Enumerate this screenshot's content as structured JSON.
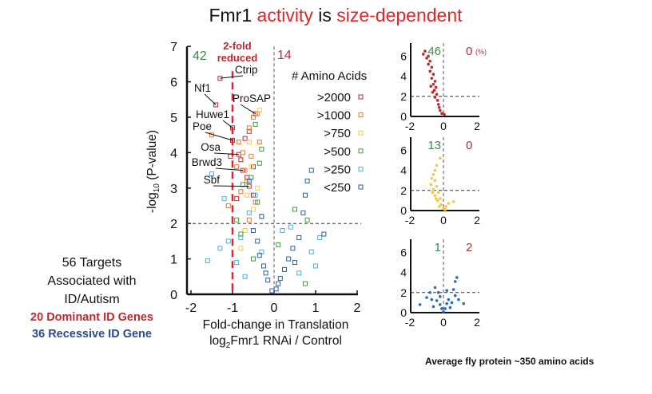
{
  "slide": {
    "title_parts": [
      "Fmr1 ",
      "activity",
      " is ",
      "size-dependent"
    ],
    "left_text": [
      "56 Targets",
      "Associated with",
      "ID/Autism"
    ],
    "dominant_label": "20 Dominant ID Genes",
    "recessive_label": "36 Recessive ID Gene",
    "footnote": "Average fly protein ~350 amino acids",
    "colors": {
      "title_accent": "#e0262a",
      "dominant": "#c0272d",
      "recessive": "#2c4a8c"
    }
  },
  "chart_data": [
    {
      "type": "scatter",
      "xlabel": "Fold-change in Translation",
      "xlabel2": "log2 Fmr1 RNAi / Control",
      "ylabel": "-log10 (P-value)",
      "xlim": [
        -2,
        2
      ],
      "ylim": [
        0,
        7
      ],
      "xticks": [
        "-2",
        "-1",
        "0",
        "1",
        "2"
      ],
      "yticks": [
        "0",
        "1",
        "2",
        "3",
        "4",
        "5",
        "6",
        "7"
      ],
      "threshold_y": 2,
      "threshold_x": -1,
      "threshold_x_label": [
        "2-fold",
        "reduced"
      ],
      "count_left": "42",
      "count_right": "14",
      "legend_title": "# Amino Acids",
      "legend_position": "right",
      "series": [
        {
          "name": ">2000",
          "color": "#c0272d",
          "points": [
            [
              -1.3,
              6.1
            ],
            [
              -1.4,
              5.35
            ],
            [
              -0.45,
              5.1
            ],
            [
              -1.0,
              4.7
            ],
            [
              -1.0,
              4.35
            ],
            [
              -0.85,
              3.95
            ],
            [
              -0.75,
              3.5
            ],
            [
              -0.6,
              3.05
            ],
            [
              -0.7,
              4.4
            ],
            [
              -0.6,
              4.6
            ],
            [
              -0.8,
              3.8
            ],
            [
              -1.05,
              3.9
            ],
            [
              -0.65,
              3.3
            ],
            [
              -0.9,
              2.7
            ],
            [
              -0.5,
              3.6
            ],
            [
              -0.5,
              2.8
            ]
          ]
        },
        {
          "name": ">1000",
          "color": "#e8782a",
          "points": [
            [
              -1.5,
              4.5
            ],
            [
              -0.4,
              5.1
            ],
            [
              -0.5,
              5.0
            ],
            [
              -0.6,
              4.7
            ],
            [
              -0.35,
              4.3
            ],
            [
              -0.85,
              4.3
            ],
            [
              -0.9,
              3.6
            ],
            [
              -0.7,
              3.5
            ],
            [
              -0.55,
              3.9
            ],
            [
              -0.75,
              4.0
            ],
            [
              -0.65,
              3.2
            ],
            [
              -0.8,
              2.9
            ],
            [
              -0.45,
              2.6
            ],
            [
              -0.6,
              2.1
            ],
            [
              -1.1,
              2.5
            ]
          ]
        },
        {
          "name": ">750",
          "color": "#f2c84b",
          "points": [
            [
              -0.35,
              5.2
            ],
            [
              -0.55,
              3.6
            ],
            [
              -0.65,
              2.8
            ],
            [
              -0.5,
              2.4
            ],
            [
              -0.7,
              1.8
            ],
            [
              -0.4,
              3.0
            ],
            [
              -0.6,
              4.3
            ],
            [
              -0.3,
              2.2
            ],
            [
              -0.8,
              1.3
            ]
          ]
        },
        {
          "name": ">500",
          "color": "#3aa03a",
          "points": [
            [
              -0.9,
              2.1
            ],
            [
              -0.8,
              1.7
            ],
            [
              -0.55,
              3.3
            ],
            [
              -0.45,
              4.8
            ],
            [
              -0.35,
              3.7
            ],
            [
              -0.4,
              2.6
            ],
            [
              0.5,
              2.4
            ],
            [
              0.8,
              2.1
            ],
            [
              0.75,
              0.3
            ],
            [
              0.1,
              1.4
            ],
            [
              -0.5,
              1.0
            ],
            [
              -0.3,
              4.1
            ],
            [
              -0.75,
              3.1
            ]
          ]
        },
        {
          "name": ">250",
          "color": "#4aaee8",
          "points": [
            [
              -1.6,
              0.95
            ],
            [
              -1.3,
              1.3
            ],
            [
              -1.1,
              1.5
            ],
            [
              -0.9,
              0.9
            ],
            [
              -0.8,
              1.6
            ],
            [
              -0.6,
              2.3
            ],
            [
              -1.5,
              3.4
            ],
            [
              -0.7,
              0.5
            ],
            [
              0.4,
              1.9
            ],
            [
              0.9,
              1.2
            ],
            [
              1.0,
              0.8
            ],
            [
              1.1,
              1.6
            ],
            [
              -0.45,
              2.8
            ],
            [
              -0.3,
              1.2
            ],
            [
              0.2,
              1.8
            ],
            [
              -1.2,
              2.7
            ],
            [
              0.6,
              0.6
            ]
          ]
        },
        {
          "name": "<250",
          "color": "#2a5fae",
          "points": [
            [
              -0.05,
              0.1
            ],
            [
              0.05,
              0.15
            ],
            [
              -0.15,
              0.4
            ],
            [
              0.15,
              0.45
            ],
            [
              -0.25,
              0.8
            ],
            [
              0.25,
              0.7
            ],
            [
              -0.35,
              1.1
            ],
            [
              0.35,
              1.0
            ],
            [
              0.45,
              1.3
            ],
            [
              -0.4,
              1.5
            ],
            [
              0.6,
              1.6
            ],
            [
              0.8,
              3.2
            ],
            [
              0.9,
              3.5
            ],
            [
              0.75,
              2.8
            ],
            [
              0.7,
              2.3
            ],
            [
              -0.3,
              2.2
            ],
            [
              -0.5,
              1.8
            ],
            [
              0.5,
              0.9
            ],
            [
              1.2,
              1.7
            ],
            [
              -0.6,
              3.2
            ],
            [
              -0.2,
              0.6
            ],
            [
              0.1,
              0.3
            ]
          ]
        }
      ],
      "annotations": [
        {
          "label": "Ctrip",
          "point": [
            -1.3,
            6.1
          ]
        },
        {
          "label": "Nf1",
          "point": [
            -1.4,
            5.35
          ]
        },
        {
          "label": "ProSAP",
          "point": [
            -0.45,
            5.1
          ]
        },
        {
          "label": "Huwe1",
          "point": [
            -1.0,
            4.7
          ]
        },
        {
          "label": "Poe",
          "point": [
            -1.0,
            4.35
          ]
        },
        {
          "label": "Osa",
          "point": [
            -0.85,
            3.95
          ]
        },
        {
          "label": "Brwd3",
          "point": [
            -0.75,
            3.5
          ]
        },
        {
          "label": "Sbf",
          "point": [
            -0.6,
            3.05
          ]
        }
      ]
    },
    {
      "type": "scatter",
      "xlim": [
        -2,
        2
      ],
      "ylim": [
        0,
        7
      ],
      "xticks": [
        "-2",
        "0",
        "2"
      ],
      "yticks": [
        "0",
        "2",
        "4",
        "6"
      ],
      "count_left": "46",
      "count_right": "0",
      "unit_note": "(%)",
      "color": "#c0272d",
      "points": [
        [
          -1.1,
          6.5
        ],
        [
          -1.2,
          6.2
        ],
        [
          -0.9,
          6.0
        ],
        [
          -1.0,
          5.8
        ],
        [
          -0.8,
          5.5
        ],
        [
          -0.9,
          5.2
        ],
        [
          -0.7,
          4.9
        ],
        [
          -0.8,
          4.5
        ],
        [
          -0.6,
          4.2
        ],
        [
          -0.7,
          3.8
        ],
        [
          -0.5,
          3.5
        ],
        [
          -0.6,
          3.2
        ],
        [
          -0.45,
          2.9
        ],
        [
          -0.55,
          2.6
        ],
        [
          -0.4,
          2.2
        ],
        [
          -0.5,
          1.9
        ],
        [
          -0.35,
          1.6
        ],
        [
          -0.3,
          1.2
        ],
        [
          -0.25,
          0.9
        ],
        [
          -0.2,
          0.6
        ],
        [
          -0.1,
          0.3
        ],
        [
          0.05,
          0.2
        ],
        [
          -0.65,
          2.4
        ],
        [
          -0.75,
          3.0
        ]
      ]
    },
    {
      "type": "scatter",
      "xlim": [
        -2,
        2
      ],
      "ylim": [
        0,
        7
      ],
      "xticks": [
        "-2",
        "0",
        "2"
      ],
      "yticks": [
        "0",
        "2",
        "4",
        "6"
      ],
      "count_left": "13",
      "count_right": "0",
      "color": "#f2c84b",
      "points": [
        [
          -0.2,
          5.2
        ],
        [
          -0.4,
          4.5
        ],
        [
          -0.5,
          4.0
        ],
        [
          -0.6,
          3.6
        ],
        [
          -0.7,
          3.2
        ],
        [
          -0.5,
          3.0
        ],
        [
          -0.75,
          2.6
        ],
        [
          -0.4,
          2.4
        ],
        [
          -0.6,
          2.1
        ],
        [
          -0.3,
          1.8
        ],
        [
          -0.5,
          1.5
        ],
        [
          -0.2,
          1.2
        ],
        [
          -0.35,
          1.0
        ],
        [
          -0.15,
          0.6
        ],
        [
          0.0,
          0.2
        ],
        [
          0.15,
          0.4
        ],
        [
          0.3,
          0.7
        ],
        [
          0.6,
          0.9
        ],
        [
          -0.65,
          1.8
        ],
        [
          -0.45,
          1.2
        ],
        [
          -0.25,
          0.4
        ],
        [
          0.1,
          0.1
        ]
      ]
    },
    {
      "type": "scatter",
      "xlim": [
        -2,
        2
      ],
      "ylim": [
        0,
        7
      ],
      "xticks": [
        "-2",
        "0",
        "2"
      ],
      "yticks": [
        "0",
        "2",
        "4",
        "6"
      ],
      "count_left": "1",
      "count_right": "2",
      "color": "#2a6bbf",
      "points": [
        [
          -1.4,
          0.8
        ],
        [
          -1.0,
          1.5
        ],
        [
          -0.8,
          2.0
        ],
        [
          -0.5,
          2.5
        ],
        [
          -0.3,
          2.0
        ],
        [
          -0.4,
          1.2
        ],
        [
          -0.2,
          0.8
        ],
        [
          -0.1,
          0.4
        ],
        [
          0.0,
          0.1
        ],
        [
          0.1,
          0.4
        ],
        [
          0.2,
          0.9
        ],
        [
          0.3,
          1.3
        ],
        [
          0.5,
          1.0
        ],
        [
          0.7,
          1.7
        ],
        [
          0.8,
          3.5
        ],
        [
          0.7,
          3.1
        ],
        [
          0.9,
          1.3
        ],
        [
          1.2,
          0.9
        ],
        [
          -0.6,
          0.6
        ],
        [
          0.4,
          0.5
        ],
        [
          -0.7,
          1.3
        ],
        [
          0.6,
          2.3
        ],
        [
          -0.2,
          1.6
        ],
        [
          0.2,
          2.2
        ]
      ]
    }
  ]
}
